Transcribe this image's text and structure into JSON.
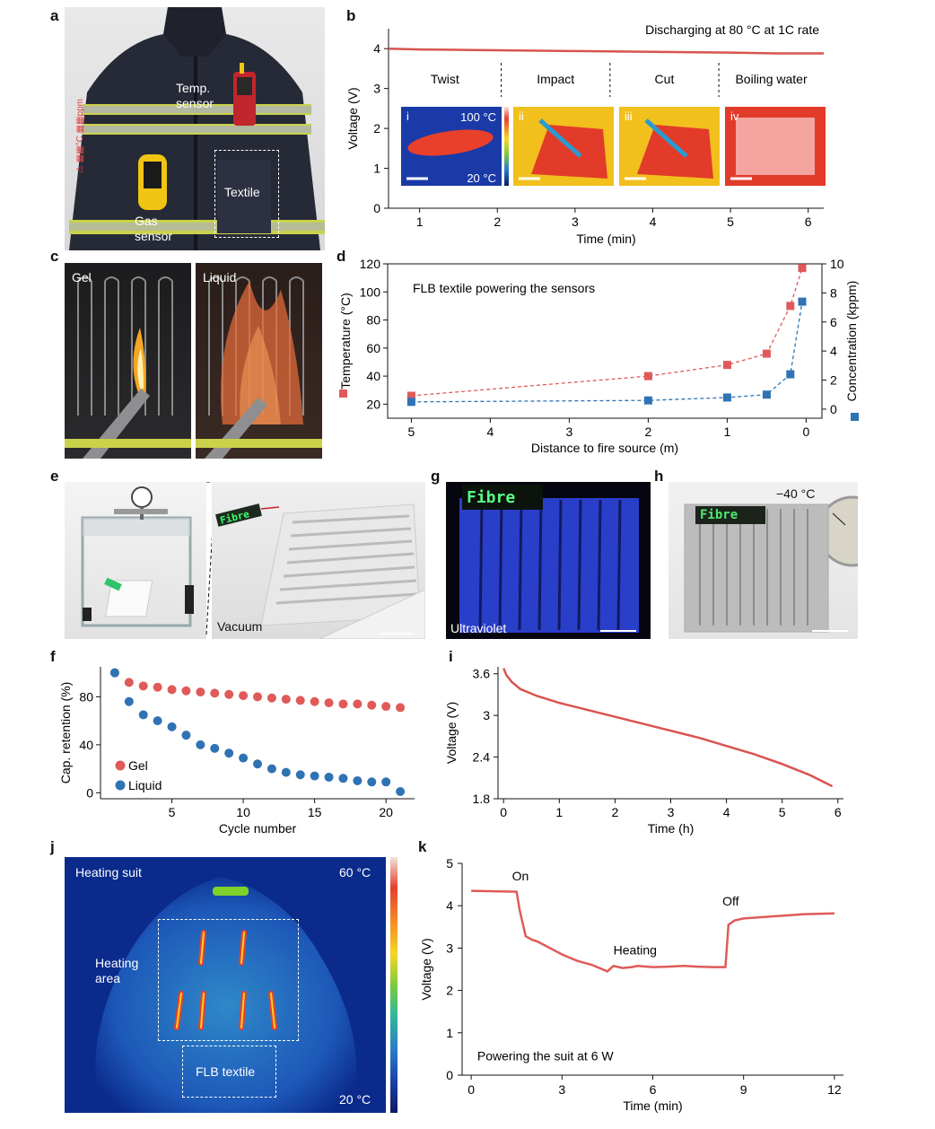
{
  "panels": {
    "a": {
      "letter": "a",
      "labels": {
        "temp_sensor": "Temp.\nsensor",
        "gas_sensor": "Gas\nsensor",
        "textile": "Textile"
      },
      "sleeve_text": "⚠ ▦▦°C ▦▦ppm"
    },
    "b": {
      "letter": "b"
    },
    "c": {
      "letter": "c",
      "labels": {
        "gel": "Gel",
        "liquid": "Liquid"
      }
    },
    "d": {
      "letter": "d"
    },
    "e": {
      "letter": "e",
      "labels": {
        "vacuum": "Vacuum",
        "sign": "Fibre"
      }
    },
    "f": {
      "letter": "f"
    },
    "g": {
      "letter": "g",
      "labels": {
        "ultraviolet": "Ultraviolet",
        "sign": "Fibre"
      }
    },
    "h": {
      "letter": "h",
      "labels": {
        "temp": "−40 °C",
        "sign": "Fibre"
      }
    },
    "i": {
      "letter": "i"
    },
    "j": {
      "letter": "j",
      "labels": {
        "title": "Heating suit",
        "high": "60 °C",
        "low": "20 °C",
        "heating_area": "Heating\narea",
        "flb_textile": "FLB textile"
      }
    },
    "k": {
      "letter": "k"
    }
  },
  "chart_data": [
    {
      "id": "b",
      "type": "line",
      "annotation": "Discharging at 80 °C at 1C rate",
      "xlabel": "Time (min)",
      "ylabel": "Voltage (V)",
      "xlim": [
        0.6,
        6.2
      ],
      "ylim": [
        0,
        4.5
      ],
      "xticks": [
        1,
        2,
        3,
        4,
        5,
        6
      ],
      "yticks": [
        0,
        1,
        2,
        3,
        4
      ],
      "x": [
        0.6,
        1,
        2,
        3,
        4,
        5,
        5.6,
        6.2
      ],
      "y": [
        4.0,
        3.98,
        3.96,
        3.94,
        3.92,
        3.9,
        3.88,
        3.88
      ],
      "segments": [
        "Twist",
        "Impact",
        "Cut",
        "Boiling water"
      ],
      "segment_bounds": [
        0.6,
        2.05,
        3.45,
        4.85,
        6.2
      ],
      "insets": [
        {
          "roman": "i",
          "hi": "100 °C",
          "lo": "20 °C"
        },
        {
          "roman": "ii"
        },
        {
          "roman": "iii"
        },
        {
          "roman": "iv"
        }
      ],
      "color": "#d9534f"
    },
    {
      "id": "d",
      "type": "scatter",
      "annotation": "FLB textile powering the sensors",
      "xlabel": "Distance to fire source (m)",
      "ylabel_left": "Temperature (°C)",
      "ylabel_right": "Concentration (kppm)",
      "xlim": [
        5.3,
        -0.2
      ],
      "ylim_left": [
        10,
        120
      ],
      "ylim_right": [
        -0.625,
        10
      ],
      "xticks": [
        5,
        4,
        3,
        2,
        1,
        0
      ],
      "yticks_left": [
        20,
        40,
        60,
        80,
        100,
        120
      ],
      "yticks_right": [
        0,
        2,
        4,
        6,
        8,
        10
      ],
      "series": [
        {
          "axis": "left",
          "color": "#e05a5a",
          "x": [
            5,
            2,
            1,
            0.5,
            0.2,
            0.05
          ],
          "y": [
            26,
            40,
            48,
            56,
            90,
            117
          ]
        },
        {
          "axis": "right",
          "color": "#2f73b4",
          "x": [
            5,
            2,
            1,
            0.5,
            0.2,
            0.05
          ],
          "y": [
            0.5,
            0.6,
            0.8,
            1.0,
            2.4,
            7.4
          ]
        }
      ]
    },
    {
      "id": "f",
      "type": "scatter",
      "xlabel": "Cycle number",
      "ylabel": "Cap. retention (%)",
      "xlim": [
        0,
        22
      ],
      "ylim": [
        -5,
        105
      ],
      "xticks": [
        5,
        10,
        15,
        20
      ],
      "yticks": [
        0,
        40,
        80
      ],
      "series": [
        {
          "name": "Gel",
          "color": "#e05a5a",
          "x": [
            1,
            2,
            3,
            4,
            5,
            6,
            7,
            8,
            9,
            10,
            11,
            12,
            13,
            14,
            15,
            16,
            17,
            18,
            19,
            20,
            21
          ],
          "y": [
            100,
            92,
            89,
            88,
            86,
            85,
            84,
            83,
            82,
            81,
            80,
            79,
            78,
            77,
            76,
            75,
            74,
            74,
            73,
            72,
            71
          ]
        },
        {
          "name": "Liquid",
          "color": "#2f73b4",
          "x": [
            1,
            2,
            3,
            4,
            5,
            6,
            7,
            8,
            9,
            10,
            11,
            12,
            13,
            14,
            15,
            16,
            17,
            18,
            19,
            20,
            21
          ],
          "y": [
            100,
            76,
            65,
            60,
            55,
            48,
            40,
            37,
            33,
            29,
            24,
            20,
            17,
            15,
            14,
            13,
            12,
            10,
            9,
            9,
            1
          ]
        }
      ]
    },
    {
      "id": "i",
      "type": "line",
      "xlabel": "Time (h)",
      "ylabel": "Voltage (V)",
      "xlim": [
        -0.1,
        6.1
      ],
      "ylim": [
        1.8,
        3.7
      ],
      "xticks": [
        0,
        1,
        2,
        3,
        4,
        5,
        6
      ],
      "yticks": [
        1.8,
        2.4,
        3.0,
        3.6
      ],
      "x": [
        0,
        0.05,
        0.15,
        0.3,
        0.6,
        1,
        1.5,
        2,
        2.5,
        3,
        3.5,
        4,
        4.5,
        5,
        5.5,
        5.9
      ],
      "y": [
        3.68,
        3.58,
        3.48,
        3.38,
        3.28,
        3.18,
        3.08,
        2.98,
        2.88,
        2.78,
        2.68,
        2.56,
        2.44,
        2.3,
        2.14,
        1.98
      ],
      "color": "#d9534f"
    },
    {
      "id": "k",
      "type": "line",
      "annotation": "Powering the suit at 6 W",
      "xlabel": "Time (min)",
      "ylabel": "Voltage (V)",
      "xlim": [
        -0.3,
        12.3
      ],
      "ylim": [
        0,
        5
      ],
      "xticks": [
        0,
        3,
        6,
        9,
        12
      ],
      "yticks": [
        0,
        1,
        2,
        3,
        4,
        5
      ],
      "x": [
        0,
        1.5,
        1.6,
        1.8,
        2.0,
        2.2,
        2.6,
        3.0,
        3.5,
        4.0,
        4.5,
        4.7,
        5.0,
        5.3,
        5.5,
        6.0,
        6.5,
        7.0,
        7.5,
        8.0,
        8.4,
        8.5,
        8.7,
        9.0,
        10,
        11,
        12
      ],
      "y": [
        4.35,
        4.33,
        3.9,
        3.28,
        3.2,
        3.15,
        3.0,
        2.85,
        2.7,
        2.6,
        2.45,
        2.58,
        2.53,
        2.55,
        2.58,
        2.55,
        2.56,
        2.58,
        2.56,
        2.55,
        2.55,
        3.55,
        3.65,
        3.7,
        3.75,
        3.8,
        3.82
      ],
      "labels": {
        "on": "On",
        "heating": "Heating",
        "off": "Off"
      },
      "color": "#e05a5a"
    }
  ]
}
